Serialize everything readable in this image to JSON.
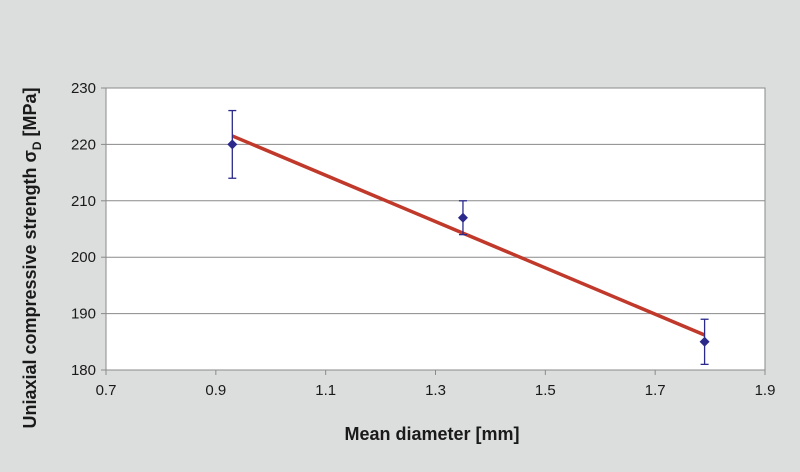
{
  "chart_data": {
    "type": "scatter",
    "x_ticks": [
      "0.7",
      "0.9",
      "1.1",
      "1.3",
      "1.5",
      "1.7",
      "1.9"
    ],
    "y_ticks": [
      "180",
      "190",
      "200",
      "210",
      "220",
      "230"
    ],
    "xlim": [
      0.7,
      1.9
    ],
    "ylim": [
      180,
      230
    ],
    "xlabel": "Mean diameter [mm]",
    "ylabel": "Uniaxial compressive strength σ",
    "ylabel_subscript": "D",
    "ylabel_unit": " [MPa]",
    "grid": "horizontal",
    "points": [
      {
        "x": 0.93,
        "y": 220,
        "err_low": 214,
        "err_high": 226
      },
      {
        "x": 1.35,
        "y": 207,
        "err_low": 204,
        "err_high": 210
      },
      {
        "x": 1.79,
        "y": 185,
        "err_low": 181,
        "err_high": 189
      }
    ],
    "trendline": {
      "x": [
        0.93,
        1.79
      ],
      "y": [
        221.5,
        186.2
      ]
    },
    "colors": {
      "marker": "#2b2a8c",
      "trendline": "#c0392b",
      "plot_bg": "#ffffff",
      "grid": "#8a8a8a"
    }
  }
}
